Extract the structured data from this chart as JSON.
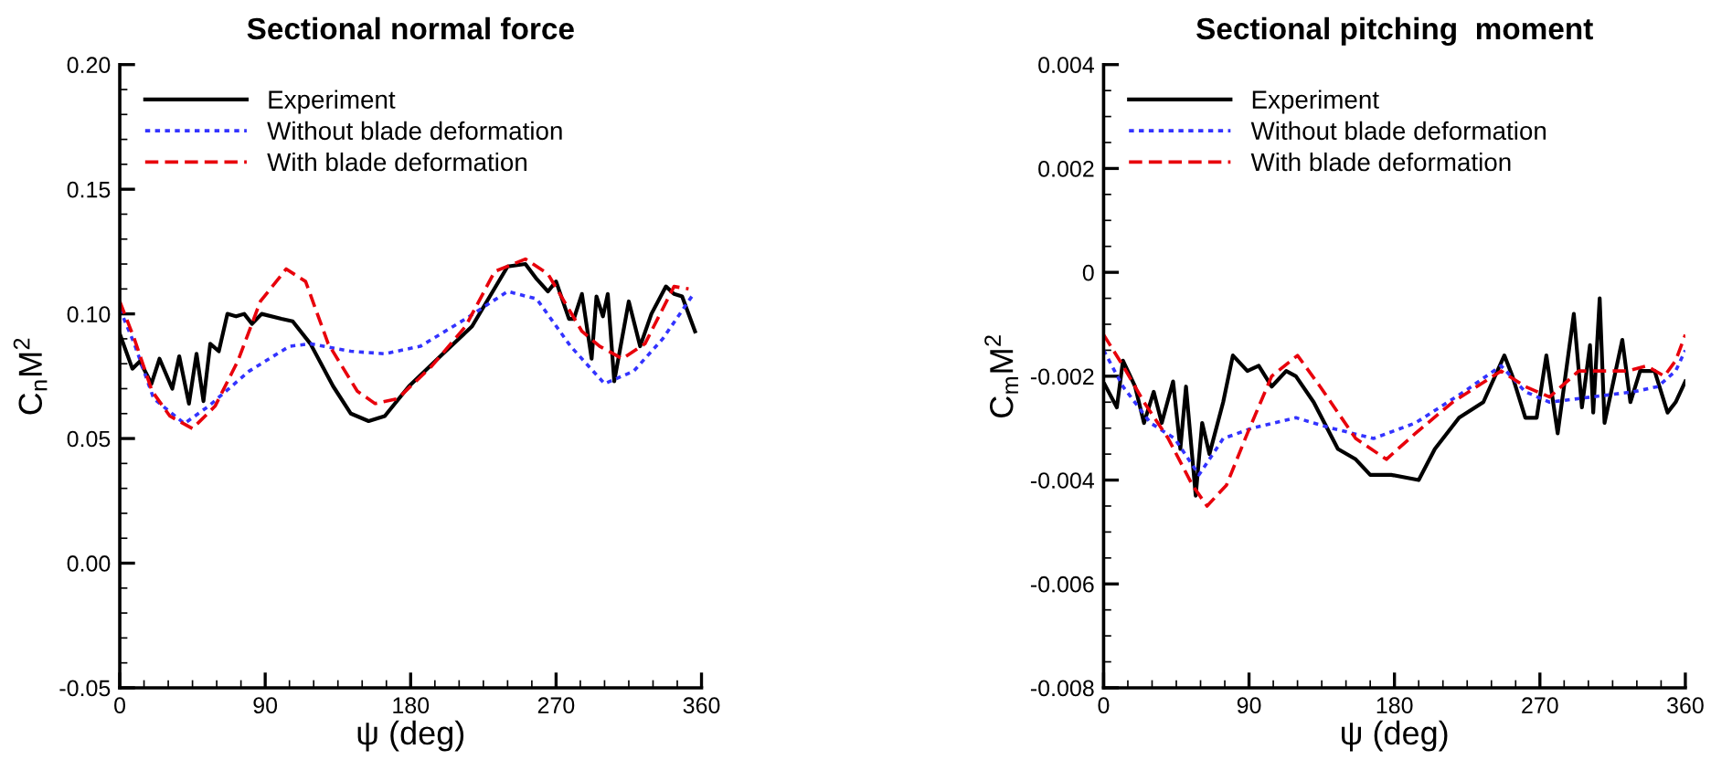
{
  "chart_data": [
    {
      "type": "line",
      "title": "Sectional normal force",
      "xlabel": "ψ (deg)",
      "ylabel": "C$_{n}$M$^{2}$",
      "xlim": [
        0,
        360
      ],
      "xticks": [
        0,
        90,
        180,
        270,
        360
      ],
      "ylim": [
        -0.05,
        0.2
      ],
      "yticks": [
        {
          "value": -0.05,
          "label": "-0.05"
        },
        {
          "value": 0,
          "label": "0.00"
        },
        {
          "value": 0.05,
          "label": "0.05"
        },
        {
          "value": 0.1,
          "label": "0.10"
        },
        {
          "value": 0.15,
          "label": "0.15"
        },
        {
          "value": 0.2,
          "label": "0.20"
        }
      ],
      "grid": false,
      "legend": "top left",
      "marker": "none",
      "series": [
        {
          "name": "Experiment",
          "color": "#000000",
          "line_style": "solid",
          "x": [
            0,
            7.8,
            12.5,
            19.6,
            24.6,
            32.5,
            36.8,
            42.8,
            47.5,
            51.8,
            56,
            61.3,
            66.6,
            72,
            77,
            81.8,
            87.8,
            100,
            107,
            118,
            132,
            143,
            154,
            164,
            179,
            200,
            218,
            229,
            240,
            251,
            258,
            265,
            270,
            278,
            281,
            286,
            292,
            295,
            299,
            302,
            306,
            315,
            322,
            329,
            338,
            343,
            348,
            356
          ],
          "values": [
            0.092,
            0.078,
            0.081,
            0.072,
            0.082,
            0.07,
            0.083,
            0.064,
            0.084,
            0.065,
            0.088,
            0.085,
            0.1,
            0.099,
            0.1,
            0.096,
            0.1,
            0.098,
            0.097,
            0.088,
            0.071,
            0.06,
            0.057,
            0.059,
            0.071,
            0.084,
            0.095,
            0.107,
            0.119,
            0.12,
            0.114,
            0.109,
            0.113,
            0.098,
            0.098,
            0.108,
            0.082,
            0.107,
            0.099,
            0.108,
            0.073,
            0.105,
            0.087,
            0.1,
            0.111,
            0.108,
            0.107,
            0.093
          ]
        },
        {
          "name": "Without blade deformation",
          "color": "#3333ff",
          "line_style": "dotted",
          "x": [
            0,
            9,
            21,
            40,
            55,
            80,
            105,
            118,
            143,
            164,
            186,
            214,
            240,
            258,
            279,
            300,
            318,
            336,
            354
          ],
          "values": [
            0.102,
            0.088,
            0.066,
            0.056,
            0.063,
            0.077,
            0.087,
            0.088,
            0.085,
            0.084,
            0.087,
            0.098,
            0.109,
            0.106,
            0.087,
            0.072,
            0.077,
            0.09,
            0.107
          ]
        },
        {
          "name": "With blade deformation",
          "color": "#e8000b",
          "line_style": "dashed",
          "x": [
            0,
            9,
            20,
            31,
            45,
            59,
            73,
            87,
            103,
            115,
            129,
            147,
            158,
            172,
            193,
            214,
            232,
            251,
            265,
            286,
            297,
            311,
            325,
            343,
            352
          ],
          "values": [
            0.105,
            0.09,
            0.069,
            0.059,
            0.054,
            0.063,
            0.081,
            0.105,
            0.118,
            0.113,
            0.088,
            0.069,
            0.064,
            0.066,
            0.079,
            0.095,
            0.117,
            0.122,
            0.116,
            0.093,
            0.087,
            0.082,
            0.088,
            0.111,
            0.11
          ]
        }
      ]
    },
    {
      "type": "line",
      "title": "Sectional pitching  moment",
      "xlabel": "ψ (deg)",
      "ylabel": "C$_{m}$M$^{2}$",
      "xlim": [
        0,
        360
      ],
      "xticks": [
        0,
        90,
        180,
        270,
        360
      ],
      "ylim": [
        -0.008,
        0.004
      ],
      "yticks": [
        -0.008,
        -0.006,
        -0.004,
        -0.002,
        0,
        0.002,
        0.004
      ],
      "grid": false,
      "legend": "top left",
      "marker": "none",
      "series": [
        {
          "name": "Experiment",
          "color": "#000000",
          "line_style": "solid",
          "x": [
            0.7,
            8.2,
            12,
            19.5,
            25,
            31,
            36,
            43,
            47.5,
            51,
            57,
            61,
            65.5,
            74,
            80,
            89,
            96,
            104,
            113,
            119,
            130,
            145,
            156,
            165,
            178,
            195,
            205,
            220,
            235,
            248,
            253,
            261,
            268,
            274,
            281,
            291,
            296,
            301,
            303,
            307,
            310,
            321,
            326,
            332,
            341,
            349,
            354,
            360
          ],
          "values": [
            -0.00216,
            -0.0026,
            -0.0017,
            -0.0022,
            -0.0029,
            -0.0023,
            -0.0029,
            -0.0021,
            -0.0034,
            -0.0022,
            -0.0043,
            -0.0029,
            -0.0035,
            -0.0025,
            -0.0016,
            -0.0019,
            -0.0018,
            -0.0022,
            -0.0019,
            -0.002,
            -0.0025,
            -0.0034,
            -0.0036,
            -0.0039,
            -0.0039,
            -0.004,
            -0.0034,
            -0.0028,
            -0.0025,
            -0.0016,
            -0.002,
            -0.0028,
            -0.0028,
            -0.0016,
            -0.0031,
            -0.0008,
            -0.0026,
            -0.0014,
            -0.0027,
            -0.0005,
            -0.0029,
            -0.0013,
            -0.0025,
            -0.0019,
            -0.0019,
            -0.0027,
            -0.0025,
            -0.0021
          ]
        },
        {
          "name": "Without blade deformation",
          "color": "#3333ff",
          "line_style": "dotted",
          "x": [
            0,
            12,
            29,
            44,
            59,
            74,
            92,
            119,
            141,
            167,
            193,
            223,
            246,
            261,
            276,
            302,
            328,
            343,
            354,
            360
          ],
          "values": [
            -0.0015,
            -0.0022,
            -0.0029,
            -0.0032,
            -0.0039,
            -0.0032,
            -0.003,
            -0.0028,
            -0.003,
            -0.0032,
            -0.0029,
            -0.0023,
            -0.0018,
            -0.0023,
            -0.0025,
            -0.0024,
            -0.0023,
            -0.0022,
            -0.0019,
            -0.0015
          ]
        },
        {
          "name": "With blade deformation",
          "color": "#e8000b",
          "line_style": "dashed",
          "x": [
            0,
            12,
            25,
            40,
            55,
            64,
            76,
            89,
            104,
            120,
            134,
            156,
            175,
            193,
            216,
            246,
            261,
            276,
            294,
            309,
            324,
            336,
            347,
            354,
            360
          ],
          "values": [
            -0.0012,
            -0.0018,
            -0.0025,
            -0.0032,
            -0.0041,
            -0.0045,
            -0.0041,
            -0.0031,
            -0.002,
            -0.0016,
            -0.0022,
            -0.0032,
            -0.0036,
            -0.0031,
            -0.0025,
            -0.0019,
            -0.0022,
            -0.0024,
            -0.0019,
            -0.0019,
            -0.0019,
            -0.0018,
            -0.002,
            -0.0017,
            -0.0012
          ]
        }
      ]
    }
  ]
}
